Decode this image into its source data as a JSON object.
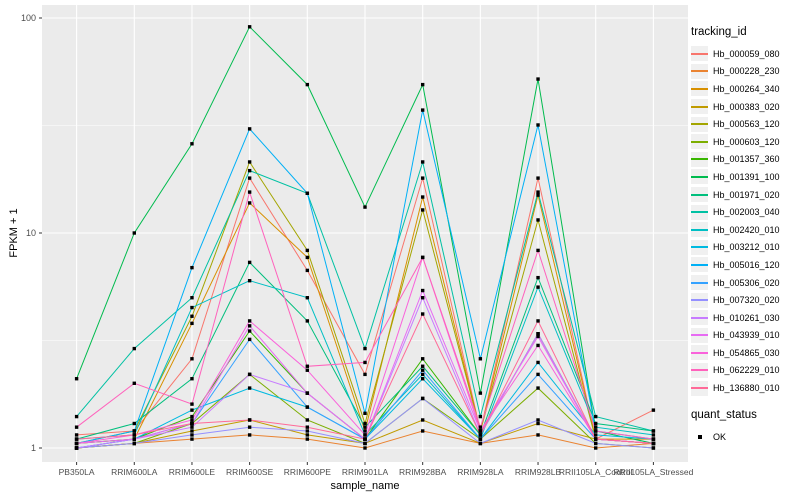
{
  "chart": {
    "chart_data": {
      "type": "line",
      "xlabel": "sample_name",
      "ylabel": "FPKM + 1",
      "y_scale": "log10",
      "ylim": [
        1,
        115
      ],
      "y_tick_labels": [
        "1",
        "10",
        "100"
      ],
      "grid": "on",
      "legend_position": "right",
      "legend_title": "tracking_id",
      "legend2_title": "quant_status",
      "legend2_items": [
        {
          "label": "OK",
          "shape": "square",
          "color": "#000000"
        }
      ],
      "panel_bg": "#EBEBEB",
      "grid_color": "#FFFFFF",
      "point_color": "#000000",
      "axis_text_color": "#4D4D4D",
      "categories": [
        "PB350LA",
        "RRIM600LA",
        "RRIM600LE",
        "RRIM600SE",
        "RRIM600PE",
        "RRIM901LA",
        "RRIM928BA",
        "RRIM928LA",
        "RRIM928LB",
        "RRII105LA_Control",
        "RRII105LA_Stressed"
      ],
      "series": [
        {
          "name": "Hb_000059_080",
          "color": "#F8766D",
          "values": [
            1.15,
            1.2,
            2.6,
            18,
            6.7,
            2.2,
            18,
            1.2,
            18,
            1.1,
            1.5
          ]
        },
        {
          "name": "Hb_000228_230",
          "color": "#EA8331",
          "values": [
            1.0,
            1.05,
            1.1,
            1.15,
            1.1,
            1.0,
            1.2,
            1.05,
            1.15,
            1.0,
            1.05
          ]
        },
        {
          "name": "Hb_000264_340",
          "color": "#D89000",
          "values": [
            1.05,
            1.1,
            3.8,
            13.8,
            7.7,
            1.2,
            14.7,
            1.2,
            15,
            1.1,
            1.1
          ]
        },
        {
          "name": "Hb_000383_020",
          "color": "#C09B00",
          "values": [
            1.0,
            1.05,
            1.2,
            1.35,
            1.15,
            1.05,
            1.35,
            1.05,
            1.3,
            1.1,
            1.05
          ]
        },
        {
          "name": "Hb_000563_120",
          "color": "#A3A500",
          "values": [
            1.05,
            1.2,
            4.1,
            21.4,
            8.3,
            1.3,
            12.8,
            1.2,
            11.5,
            1.1,
            1.05
          ]
        },
        {
          "name": "Hb_000603_120",
          "color": "#7CAE00",
          "values": [
            1.0,
            1.05,
            1.3,
            2.2,
            1.35,
            1.05,
            1.7,
            1.1,
            1.9,
            1.05,
            1.0
          ]
        },
        {
          "name": "Hb_001357_360",
          "color": "#39B600",
          "values": [
            1.05,
            1.1,
            1.4,
            3.5,
            1.8,
            1.1,
            2.6,
            1.15,
            3.4,
            1.1,
            1.05
          ]
        },
        {
          "name": "Hb_001391_100",
          "color": "#00BB4E",
          "values": [
            2.1,
            10,
            26,
            91,
            49,
            13.2,
            49,
            1.8,
            52,
            1.2,
            1.05
          ]
        },
        {
          "name": "Hb_001971_020",
          "color": "#00BF7D",
          "values": [
            1.1,
            1.3,
            2.1,
            7.3,
            3.9,
            1.25,
            2.4,
            1.15,
            6.2,
            1.3,
            1.2
          ]
        },
        {
          "name": "Hb_002003_040",
          "color": "#00C1A3",
          "values": [
            1.4,
            2.9,
            5.0,
            19.5,
            15.3,
            2.9,
            21.4,
            1.4,
            15.5,
            1.4,
            1.2
          ]
        },
        {
          "name": "Hb_002420_010",
          "color": "#00BFC4",
          "values": [
            1.1,
            1.15,
            4.5,
            6.0,
            5.0,
            1.15,
            2.2,
            1.1,
            5.6,
            1.25,
            1.15
          ]
        },
        {
          "name": "Hb_003212_010",
          "color": "#00BAE0",
          "values": [
            1.0,
            1.1,
            1.5,
            1.9,
            1.55,
            1.1,
            2.1,
            1.1,
            2.5,
            1.15,
            1.1
          ]
        },
        {
          "name": "Hb_005016_120",
          "color": "#00B0F6",
          "values": [
            1.05,
            1.2,
            6.9,
            30.5,
            15.3,
            1.45,
            37.3,
            2.6,
            31.8,
            1.2,
            1.1
          ]
        },
        {
          "name": "Hb_005306_020",
          "color": "#35A2FF",
          "values": [
            1.0,
            1.1,
            1.3,
            3.2,
            1.55,
            1.1,
            2.3,
            1.1,
            2.2,
            1.1,
            1.05
          ]
        },
        {
          "name": "Hb_007320_020",
          "color": "#9590FF",
          "values": [
            1.0,
            1.05,
            1.15,
            1.25,
            1.2,
            1.05,
            1.7,
            1.05,
            1.35,
            1.05,
            1.0
          ]
        },
        {
          "name": "Hb_010261_030",
          "color": "#C77CFF",
          "values": [
            1.0,
            1.1,
            1.25,
            2.2,
            1.8,
            1.1,
            5.0,
            1.15,
            3.4,
            1.1,
            1.05
          ]
        },
        {
          "name": "Hb_043939_010",
          "color": "#E76BF3",
          "values": [
            1.05,
            1.1,
            1.3,
            3.7,
            1.8,
            1.1,
            5.4,
            1.2,
            3.3,
            1.1,
            1.05
          ]
        },
        {
          "name": "Hb_054865_030",
          "color": "#FA62DB",
          "values": [
            1.05,
            1.15,
            1.35,
            3.9,
            2.3,
            1.15,
            7.7,
            1.2,
            3.0,
            1.1,
            1.05
          ]
        },
        {
          "name": "Hb_062229_010",
          "color": "#FF62BC",
          "values": [
            1.25,
            2.0,
            1.6,
            15.5,
            2.4,
            2.5,
            7.7,
            1.25,
            8.3,
            1.2,
            1.1
          ]
        },
        {
          "name": "Hb_136880_010",
          "color": "#FF6A98",
          "values": [
            1.1,
            1.15,
            1.3,
            1.35,
            1.25,
            1.1,
            4.2,
            1.15,
            3.9,
            1.1,
            1.05
          ]
        }
      ]
    }
  }
}
